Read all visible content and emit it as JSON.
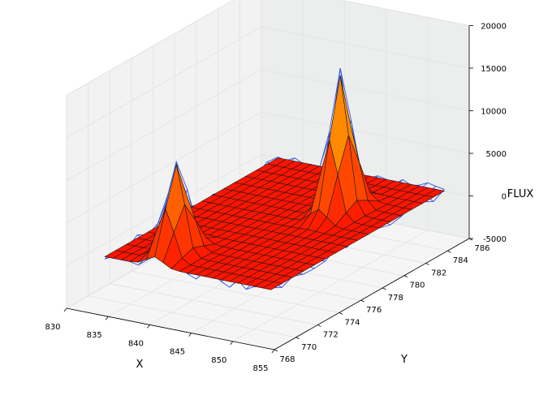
{
  "chart_data": {
    "type": "surface3d",
    "xlabel": "X",
    "ylabel": "Y",
    "zlabel": "FLUX",
    "x_ticks": [
      "830",
      "835",
      "840",
      "845",
      "850",
      "855"
    ],
    "y_ticks": [
      "768",
      "770",
      "772",
      "774",
      "776",
      "778",
      "780",
      "782",
      "784",
      "786"
    ],
    "z_ticks": [
      "-5000",
      "0",
      "5000",
      "10000",
      "15000",
      "20000"
    ],
    "xlim": [
      830,
      855
    ],
    "ylim": [
      768,
      786
    ],
    "zlim": [
      -5000,
      20000
    ],
    "grid": true,
    "surface_colormap": "autumn",
    "overlay_wireframe_color": "#3050e0",
    "peaks": [
      {
        "x": 838,
        "y": 772,
        "flux": 10500
      },
      {
        "x": 846,
        "y": 781,
        "flux": 16000
      }
    ]
  }
}
